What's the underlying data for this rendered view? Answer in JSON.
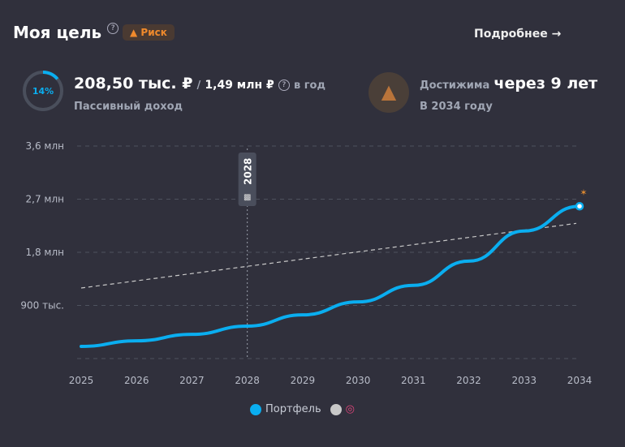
{
  "header": {
    "title": "Моя цель",
    "help": "?",
    "risk_badge": "Риск",
    "more_link": "Подробнее",
    "more_arrow": "→"
  },
  "income": {
    "progress_percent": 14,
    "progress_label": "14%",
    "current": "208,50 тыс. ₽",
    "separator": "/",
    "target": "1,49 млн ₽",
    "help": "?",
    "period": "в год",
    "caption": "Пассивный доход"
  },
  "reach": {
    "label": "Достижима",
    "value": "через 9 лет",
    "year_text": "В 2034 году",
    "icon": "warning-icon"
  },
  "chart_data": {
    "type": "line",
    "x": [
      2025,
      2026,
      2027,
      2028,
      2029,
      2030,
      2031,
      2032,
      2033,
      2034
    ],
    "ylim": [
      0,
      3600000
    ],
    "yticks": [
      {
        "v": 3600000,
        "label": "3,6 млн"
      },
      {
        "v": 2700000,
        "label": "2,7 млн"
      },
      {
        "v": 1800000,
        "label": "1,8 млн"
      },
      {
        "v": 900000,
        "label": "900 тыс."
      },
      {
        "v": 0,
        "label": ""
      }
    ],
    "series": [
      {
        "name": "Портфель",
        "color": "#0aaef0",
        "values": [
          206000,
          300000,
          410000,
          550000,
          740000,
          960000,
          1240000,
          1650000,
          2160000,
          2580000
        ]
      },
      {
        "name": "",
        "color": "#c8c8c8",
        "icon": "target-icon",
        "dashed": true,
        "values": [
          1195000,
          1317000,
          1439000,
          1560000,
          1682000,
          1804000,
          1926000,
          2047000,
          2169000,
          2290000
        ]
      }
    ],
    "marker": {
      "year": 2028,
      "label": "2028",
      "icon": "checkered-flag-icon"
    },
    "end_icon": "party-popper-icon",
    "legend_position": "bottom-center"
  }
}
